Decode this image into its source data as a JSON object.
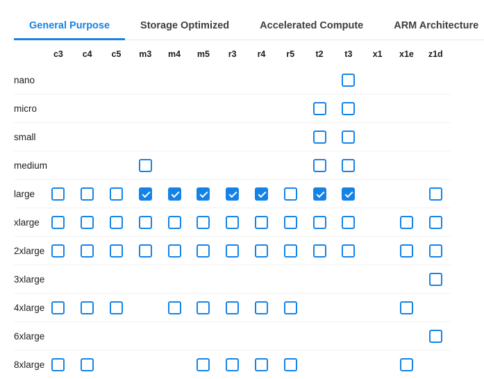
{
  "colors": {
    "accent": "#1583E6"
  },
  "tabs": [
    {
      "label": "General Purpose",
      "active": true
    },
    {
      "label": "Storage Optimized",
      "active": false
    },
    {
      "label": "Accelerated Compute",
      "active": false
    },
    {
      "label": "ARM Architecture",
      "active": false
    }
  ],
  "grid": {
    "columns": [
      "c3",
      "c4",
      "c5",
      "m3",
      "m4",
      "m5",
      "r3",
      "r4",
      "r5",
      "t2",
      "t3",
      "x1",
      "x1e",
      "z1d"
    ],
    "rows": [
      {
        "label": "nano",
        "available": [
          "t3"
        ],
        "checked": []
      },
      {
        "label": "micro",
        "available": [
          "t2",
          "t3"
        ],
        "checked": []
      },
      {
        "label": "small",
        "available": [
          "t2",
          "t3"
        ],
        "checked": []
      },
      {
        "label": "medium",
        "available": [
          "m3",
          "t2",
          "t3"
        ],
        "checked": []
      },
      {
        "label": "large",
        "available": [
          "c3",
          "c4",
          "c5",
          "m3",
          "m4",
          "m5",
          "r3",
          "r4",
          "r5",
          "t2",
          "t3",
          "z1d"
        ],
        "checked": [
          "m3",
          "m4",
          "m5",
          "r3",
          "r4",
          "t2",
          "t3"
        ]
      },
      {
        "label": "xlarge",
        "available": [
          "c3",
          "c4",
          "c5",
          "m3",
          "m4",
          "m5",
          "r3",
          "r4",
          "r5",
          "t2",
          "t3",
          "x1e",
          "z1d"
        ],
        "checked": []
      },
      {
        "label": "2xlarge",
        "available": [
          "c3",
          "c4",
          "c5",
          "m3",
          "m4",
          "m5",
          "r3",
          "r4",
          "r5",
          "t2",
          "t3",
          "x1e",
          "z1d"
        ],
        "checked": []
      },
      {
        "label": "3xlarge",
        "available": [
          "z1d"
        ],
        "checked": []
      },
      {
        "label": "4xlarge",
        "available": [
          "c3",
          "c4",
          "c5",
          "m4",
          "m5",
          "r3",
          "r4",
          "r5",
          "x1e"
        ],
        "checked": []
      },
      {
        "label": "6xlarge",
        "available": [
          "z1d"
        ],
        "checked": []
      },
      {
        "label": "8xlarge",
        "available": [
          "c3",
          "c4",
          "m5",
          "r3",
          "r4",
          "r5",
          "x1e"
        ],
        "checked": []
      }
    ]
  }
}
